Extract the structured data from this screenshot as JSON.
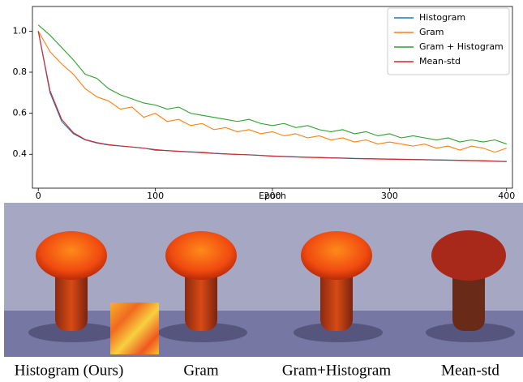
{
  "chart_data": {
    "type": "line",
    "xlabel": "Epoch",
    "x": [
      0,
      10,
      20,
      30,
      40,
      50,
      60,
      70,
      80,
      90,
      100,
      110,
      120,
      130,
      140,
      150,
      160,
      170,
      180,
      190,
      200,
      210,
      220,
      230,
      240,
      250,
      260,
      270,
      280,
      290,
      300,
      310,
      320,
      330,
      340,
      350,
      360,
      370,
      380,
      390,
      400
    ],
    "series": [
      {
        "name": "Histogram",
        "color": "#1f77b4",
        "values": [
          1.0,
          0.7,
          0.56,
          0.5,
          0.47,
          0.455,
          0.445,
          0.44,
          0.435,
          0.43,
          0.42,
          0.418,
          0.415,
          0.412,
          0.41,
          0.405,
          0.402,
          0.4,
          0.398,
          0.395,
          0.392,
          0.39,
          0.388,
          0.386,
          0.385,
          0.383,
          0.382,
          0.38,
          0.379,
          0.378,
          0.377,
          0.376,
          0.375,
          0.374,
          0.373,
          0.372,
          0.371,
          0.37,
          0.369,
          0.367,
          0.365
        ]
      },
      {
        "name": "Gram",
        "color": "#ff7f0e",
        "values": [
          1.0,
          0.9,
          0.84,
          0.79,
          0.72,
          0.68,
          0.66,
          0.62,
          0.63,
          0.58,
          0.6,
          0.56,
          0.57,
          0.54,
          0.55,
          0.52,
          0.53,
          0.51,
          0.52,
          0.5,
          0.51,
          0.49,
          0.5,
          0.48,
          0.49,
          0.47,
          0.48,
          0.46,
          0.47,
          0.45,
          0.46,
          0.45,
          0.44,
          0.45,
          0.43,
          0.44,
          0.42,
          0.44,
          0.43,
          0.41,
          0.43
        ]
      },
      {
        "name": "Gram + Histogram",
        "color": "#2ca02c",
        "values": [
          1.03,
          0.98,
          0.92,
          0.86,
          0.79,
          0.77,
          0.72,
          0.69,
          0.67,
          0.65,
          0.64,
          0.62,
          0.63,
          0.6,
          0.59,
          0.58,
          0.57,
          0.56,
          0.57,
          0.55,
          0.54,
          0.55,
          0.53,
          0.54,
          0.52,
          0.51,
          0.52,
          0.5,
          0.51,
          0.49,
          0.5,
          0.48,
          0.49,
          0.48,
          0.47,
          0.48,
          0.46,
          0.47,
          0.46,
          0.47,
          0.45
        ]
      },
      {
        "name": "Mean-std",
        "color": "#d62728",
        "values": [
          1.0,
          0.71,
          0.57,
          0.505,
          0.472,
          0.457,
          0.447,
          0.441,
          0.436,
          0.43,
          0.423,
          0.418,
          0.414,
          0.411,
          0.408,
          0.404,
          0.401,
          0.399,
          0.397,
          0.394,
          0.391,
          0.389,
          0.387,
          0.385,
          0.384,
          0.382,
          0.381,
          0.379,
          0.378,
          0.377,
          0.376,
          0.375,
          0.374,
          0.373,
          0.372,
          0.371,
          0.37,
          0.369,
          0.368,
          0.366,
          0.364
        ]
      }
    ],
    "xlim": [
      -5,
      405
    ],
    "ylim": [
      0.235,
      1.12
    ],
    "xticks": [
      0,
      100,
      200,
      300,
      400
    ],
    "yticks": [
      0.4,
      0.6,
      0.8,
      {
        "value": 1,
        "label": "1.0"
      }
    ],
    "legend": "upper right"
  },
  "captions": [
    "Histogram (Ours)",
    "Gram",
    "Gram+Histogram",
    "Mean-std"
  ]
}
